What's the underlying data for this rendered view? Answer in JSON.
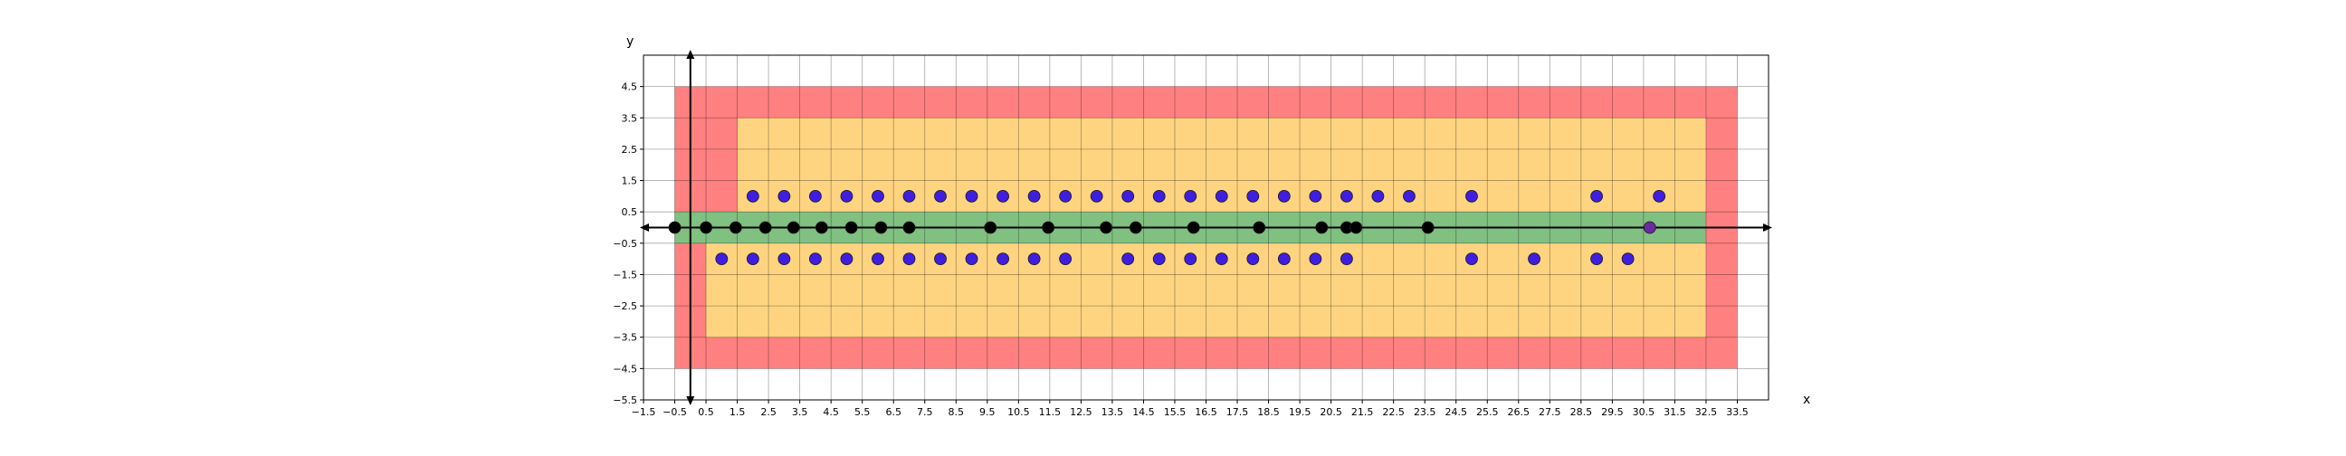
{
  "chart_data": {
    "type": "scatter",
    "xlabel": "x",
    "ylabel": "y",
    "xlim": [
      -1.5,
      34.5
    ],
    "ylim": [
      -5.5,
      5.5
    ],
    "grid": true,
    "x_ticks": [
      "-1.5",
      "-0.5",
      "0.5",
      "1.5",
      "2.5",
      "3.5",
      "4.5",
      "5.5",
      "6.5",
      "7.5",
      "8.5",
      "9.5",
      "10.5",
      "11.5",
      "12.5",
      "13.5",
      "14.5",
      "15.5",
      "16.5",
      "17.5",
      "18.5",
      "19.5",
      "20.5",
      "21.5",
      "22.5",
      "23.5",
      "24.5",
      "25.5",
      "26.5",
      "27.5",
      "28.5",
      "29.5",
      "30.5",
      "31.5",
      "32.5",
      "33.5"
    ],
    "y_ticks": [
      "-5.5",
      "-4.5",
      "-3.5",
      "-2.5",
      "-1.5",
      "-0.5",
      "0.5",
      "1.5",
      "2.5",
      "3.5",
      "4.5"
    ],
    "regions": [
      {
        "color": "#ff8080",
        "polygon": [
          [
            -0.5,
            -4.5
          ],
          [
            33.5,
            -4.5
          ],
          [
            33.5,
            4.5
          ],
          [
            -0.5,
            4.5
          ]
        ]
      },
      {
        "color": "#ffd480",
        "polygon": [
          [
            0.5,
            -3.5
          ],
          [
            32.5,
            -3.5
          ],
          [
            32.5,
            3.5
          ],
          [
            1.5,
            3.5
          ],
          [
            1.5,
            0.5
          ],
          [
            0.5,
            0.5
          ]
        ]
      },
      {
        "color": "#80c080",
        "polygon": [
          [
            -0.5,
            -0.5
          ],
          [
            32.5,
            -0.5
          ],
          [
            32.5,
            0.5
          ],
          [
            -0.5,
            0.5
          ]
        ]
      }
    ],
    "series": [
      {
        "color": "#000000",
        "points": [
          [
            -0.5,
            0
          ],
          [
            0.5,
            0
          ],
          [
            1.45,
            0
          ],
          [
            2.4,
            0
          ],
          [
            3.3,
            0
          ],
          [
            4.2,
            0
          ],
          [
            5.15,
            0
          ],
          [
            6.1,
            0
          ],
          [
            7.0,
            0
          ],
          [
            9.6,
            0
          ],
          [
            11.45,
            0
          ],
          [
            13.3,
            0
          ],
          [
            14.25,
            0
          ],
          [
            16.1,
            0
          ],
          [
            18.2,
            0
          ],
          [
            20.2,
            0
          ],
          [
            21.0,
            0
          ],
          [
            21.3,
            0
          ],
          [
            23.6,
            0
          ]
        ]
      },
      {
        "color": "#3f1ee0",
        "points": [
          [
            2.0,
            1
          ],
          [
            3.0,
            1
          ],
          [
            4.0,
            1
          ],
          [
            5.0,
            1
          ],
          [
            6.0,
            1
          ],
          [
            7.0,
            1
          ],
          [
            8.0,
            1
          ],
          [
            9.0,
            1
          ],
          [
            10.0,
            1
          ],
          [
            11.0,
            1
          ],
          [
            12.0,
            1
          ],
          [
            13.0,
            1
          ],
          [
            14.0,
            1
          ],
          [
            15.0,
            1
          ],
          [
            16.0,
            1
          ],
          [
            17.0,
            1
          ],
          [
            18.0,
            1
          ],
          [
            19.0,
            1
          ],
          [
            20.0,
            1
          ],
          [
            21.0,
            1
          ],
          [
            22.0,
            1
          ],
          [
            23.0,
            1
          ],
          [
            25.0,
            1
          ],
          [
            29.0,
            1
          ],
          [
            31.0,
            1
          ],
          [
            1.0,
            -1
          ],
          [
            2.0,
            -1
          ],
          [
            3.0,
            -1
          ],
          [
            4.0,
            -1
          ],
          [
            5.0,
            -1
          ],
          [
            6.0,
            -1
          ],
          [
            7.0,
            -1
          ],
          [
            8.0,
            -1
          ],
          [
            9.0,
            -1
          ],
          [
            10.0,
            -1
          ],
          [
            11.0,
            -1
          ],
          [
            12.0,
            -1
          ],
          [
            14.0,
            -1
          ],
          [
            15.0,
            -1
          ],
          [
            16.0,
            -1
          ],
          [
            17.0,
            -1
          ],
          [
            18.0,
            -1
          ],
          [
            19.0,
            -1
          ],
          [
            20.0,
            -1
          ],
          [
            21.0,
            -1
          ],
          [
            25.0,
            -1
          ],
          [
            27.0,
            -1
          ],
          [
            29.0,
            -1
          ],
          [
            30.0,
            -1
          ]
        ]
      },
      {
        "color": "#6a2aa0",
        "points": [
          [
            30.7,
            0
          ]
        ]
      }
    ]
  }
}
